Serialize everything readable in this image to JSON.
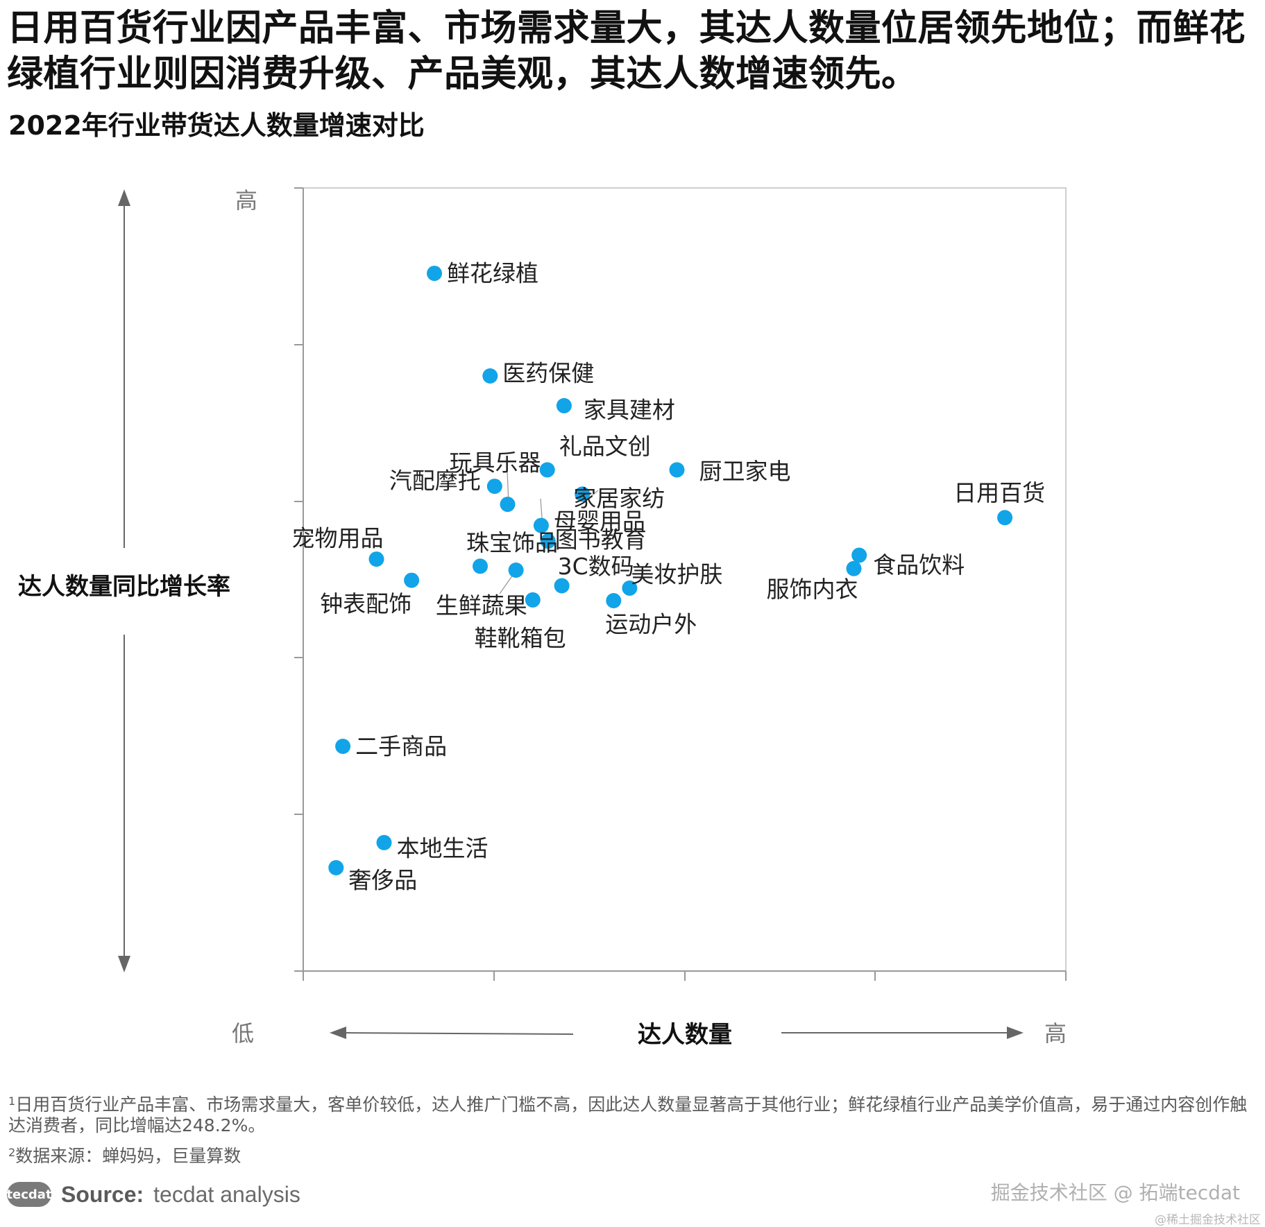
{
  "headline": "日用百货行业因产品丰富、市场需求量大，其达人数量位居领先地位；而鲜花绿植行业则因消费升级、产品美观，其达人数增速领先。",
  "subtitle": "2022年行业带货达人数量增速对比",
  "chart_data": {
    "type": "scatter",
    "xlabel": "达人数量",
    "ylabel": "达人数量同比增长率",
    "x_low_label": "低",
    "x_high_label": "高",
    "y_high_label": "高",
    "xlim": [
      0,
      100
    ],
    "ylim": [
      0,
      100
    ],
    "grid": false,
    "point_color": "#11a4e8",
    "points": [
      {
        "label": "鲜花绿植",
        "x": 17.2,
        "y": 89.1
      },
      {
        "label": "医药保健",
        "x": 24.5,
        "y": 76.0
      },
      {
        "label": "家具建材",
        "x": 34.2,
        "y": 72.2
      },
      {
        "label": "礼品文创",
        "x": 32.0,
        "y": 64.0
      },
      {
        "label": "厨卫家电",
        "x": 49.0,
        "y": 64.0
      },
      {
        "label": "玩具乐器",
        "x": 26.8,
        "y": 59.6
      },
      {
        "label": "家居家纺",
        "x": 36.6,
        "y": 60.9
      },
      {
        "label": "汽配摩托",
        "x": 25.1,
        "y": 61.9
      },
      {
        "label": "母婴用品",
        "x": 31.2,
        "y": 56.9
      },
      {
        "label": "图书教育",
        "x": 32.1,
        "y": 54.9
      },
      {
        "label": "日用百货",
        "x": 92.0,
        "y": 57.9
      },
      {
        "label": "宠物用品",
        "x": 9.6,
        "y": 52.6
      },
      {
        "label": "珠宝饰品",
        "x": 23.2,
        "y": 51.7
      },
      {
        "label": "鞋靴箱包",
        "x": 27.9,
        "y": 51.2
      },
      {
        "label": "食品饮料",
        "x": 72.9,
        "y": 53.1
      },
      {
        "label": "服饰内衣",
        "x": 72.2,
        "y": 51.4
      },
      {
        "label": "钟表配饰",
        "x": 14.2,
        "y": 49.9
      },
      {
        "label": "3C数码",
        "x": 33.9,
        "y": 49.2
      },
      {
        "label": "美妆护肤",
        "x": 42.8,
        "y": 48.9
      },
      {
        "label": "生鲜蔬果",
        "x": 30.1,
        "y": 47.4
      },
      {
        "label": "运动户外",
        "x": 40.7,
        "y": 47.3
      },
      {
        "label": "二手商品",
        "x": 5.2,
        "y": 28.7
      },
      {
        "label": "本地生活",
        "x": 10.6,
        "y": 16.4
      },
      {
        "label": "奢侈品",
        "x": 4.3,
        "y": 13.2
      }
    ]
  },
  "footnotes": {
    "note1_marker": "1",
    "note1": "日用百货行业产品丰富、市场需求量大，客单价较低，达人推广门槛不高，因此达人数量显著高于其他行业；鲜花绿植行业产品美学价值高，易于通过内容创作触达消费者，同比增幅达248.2%。",
    "note2_marker": "2",
    "note2": "数据来源：蝉妈妈，巨量算数"
  },
  "source": {
    "logo_text": "tecdat",
    "label": "Source:",
    "text": "tecdat analysis"
  },
  "watermark": "掘金技术社区 @ 拓端tecdat",
  "watermark_small": "@稀土掘金技术社区"
}
